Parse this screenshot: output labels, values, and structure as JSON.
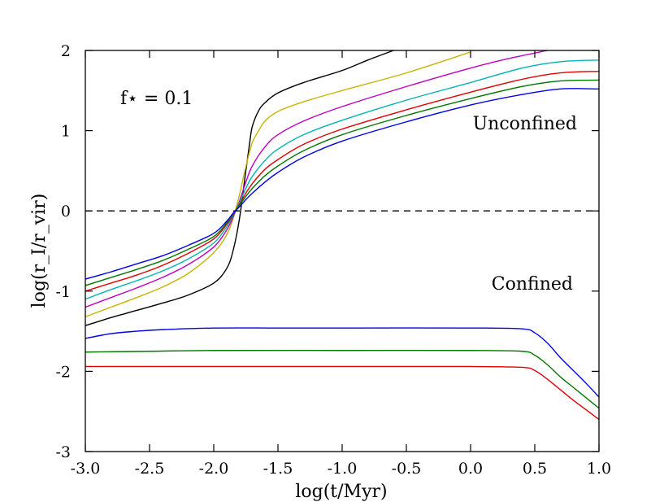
{
  "chart_data": {
    "type": "line",
    "title": "",
    "xlabel": "log(t/Myr)",
    "ylabel": "log(r_I/r_vir)",
    "xlim": [
      -3.0,
      1.0
    ],
    "ylim": [
      -3,
      2
    ],
    "xticks": [
      "-3.0",
      "-2.5",
      "-2.0",
      "-1.5",
      "-1.0",
      "-0.5",
      "0.0",
      "0.5",
      "1.0"
    ],
    "yticks": [
      "2",
      "1",
      "0",
      "-1",
      "-2",
      "-3"
    ],
    "annotations": {
      "param": "f⋆ = 0.1",
      "unconfined": "Unconfined",
      "confined": "Confined"
    },
    "reference_line": {
      "y": 0,
      "style": "dashed",
      "color": "#000000"
    },
    "series": [
      {
        "name": "unconfined-black",
        "color": "#000000",
        "x": [
          -3.0,
          -2.8,
          -2.6,
          -2.4,
          -2.2,
          -2.0,
          -1.9,
          -1.85,
          -1.8,
          -1.75,
          -1.72,
          -1.7,
          -1.65,
          -1.6,
          -1.5,
          -1.3,
          -1.0,
          -0.8,
          -0.6
        ],
        "y": [
          -1.43,
          -1.33,
          -1.24,
          -1.15,
          -1.05,
          -0.9,
          -0.72,
          -0.5,
          -0.1,
          0.5,
          0.85,
          1.05,
          1.25,
          1.35,
          1.47,
          1.6,
          1.75,
          1.88,
          2.0
        ]
      },
      {
        "name": "unconfined-yellow",
        "color": "#c8b400",
        "x": [
          -3.0,
          -2.8,
          -2.6,
          -2.4,
          -2.2,
          -2.0,
          -1.9,
          -1.85,
          -1.8,
          -1.75,
          -1.7,
          -1.65,
          -1.6,
          -1.5,
          -1.3,
          -1.0,
          -0.5,
          0.0
        ],
        "y": [
          -1.32,
          -1.2,
          -1.08,
          -0.95,
          -0.78,
          -0.52,
          -0.3,
          -0.1,
          0.2,
          0.55,
          0.85,
          1.0,
          1.12,
          1.24,
          1.36,
          1.5,
          1.72,
          1.98
        ]
      },
      {
        "name": "unconfined-magenta",
        "color": "#c000c0",
        "x": [
          -3.0,
          -2.8,
          -2.6,
          -2.4,
          -2.2,
          -2.0,
          -1.9,
          -1.85,
          -1.8,
          -1.75,
          -1.7,
          -1.6,
          -1.5,
          -1.3,
          -1.0,
          -0.5,
          0.0,
          0.3,
          0.6
        ],
        "y": [
          -1.2,
          -1.08,
          -0.96,
          -0.83,
          -0.67,
          -0.45,
          -0.24,
          -0.08,
          0.12,
          0.36,
          0.56,
          0.8,
          0.95,
          1.12,
          1.3,
          1.55,
          1.78,
          1.9,
          2.0
        ]
      },
      {
        "name": "unconfined-cyan",
        "color": "#00b4b4",
        "x": [
          -3.0,
          -2.8,
          -2.6,
          -2.4,
          -2.2,
          -2.0,
          -1.9,
          -1.85,
          -1.8,
          -1.75,
          -1.7,
          -1.6,
          -1.5,
          -1.3,
          -1.0,
          -0.5,
          0.0,
          0.4,
          0.7,
          1.0
        ],
        "y": [
          -1.1,
          -0.98,
          -0.87,
          -0.75,
          -0.6,
          -0.4,
          -0.2,
          -0.06,
          0.1,
          0.28,
          0.43,
          0.63,
          0.77,
          0.95,
          1.13,
          1.38,
          1.6,
          1.78,
          1.86,
          1.88
        ]
      },
      {
        "name": "unconfined-red",
        "color": "#e00000",
        "x": [
          -3.0,
          -2.8,
          -2.6,
          -2.4,
          -2.2,
          -2.0,
          -1.9,
          -1.85,
          -1.8,
          -1.75,
          -1.7,
          -1.6,
          -1.5,
          -1.3,
          -1.0,
          -0.5,
          0.0,
          0.4,
          0.7,
          1.0
        ],
        "y": [
          -1.0,
          -0.9,
          -0.8,
          -0.68,
          -0.53,
          -0.35,
          -0.17,
          -0.05,
          0.08,
          0.22,
          0.34,
          0.52,
          0.64,
          0.83,
          1.02,
          1.26,
          1.48,
          1.64,
          1.72,
          1.74
        ]
      },
      {
        "name": "unconfined-green",
        "color": "#007800",
        "x": [
          -3.0,
          -2.8,
          -2.6,
          -2.4,
          -2.2,
          -2.0,
          -1.9,
          -1.85,
          -1.8,
          -1.75,
          -1.7,
          -1.6,
          -1.5,
          -1.3,
          -1.0,
          -0.5,
          0.0,
          0.4,
          0.7,
          1.0
        ],
        "y": [
          -0.93,
          -0.83,
          -0.73,
          -0.62,
          -0.48,
          -0.32,
          -0.15,
          -0.04,
          0.07,
          0.18,
          0.28,
          0.44,
          0.56,
          0.75,
          0.95,
          1.19,
          1.4,
          1.55,
          1.62,
          1.63
        ]
      },
      {
        "name": "unconfined-blue",
        "color": "#0000e6",
        "x": [
          -3.0,
          -2.8,
          -2.6,
          -2.4,
          -2.2,
          -2.0,
          -1.9,
          -1.85,
          -1.8,
          -1.75,
          -1.7,
          -1.6,
          -1.5,
          -1.3,
          -1.0,
          -0.5,
          0.0,
          0.4,
          0.7,
          1.0
        ],
        "y": [
          -0.85,
          -0.76,
          -0.66,
          -0.56,
          -0.43,
          -0.28,
          -0.13,
          -0.03,
          0.05,
          0.14,
          0.22,
          0.36,
          0.48,
          0.67,
          0.87,
          1.11,
          1.32,
          1.45,
          1.52,
          1.52
        ]
      },
      {
        "name": "confined-blue",
        "color": "#0000e6",
        "x": [
          -3.0,
          -2.8,
          -2.6,
          -2.4,
          -2.0,
          -1.5,
          -1.0,
          0.0,
          0.4,
          0.5,
          0.6,
          0.7,
          0.8,
          0.9,
          1.0
        ],
        "y": [
          -1.59,
          -1.53,
          -1.5,
          -1.48,
          -1.46,
          -1.46,
          -1.46,
          -1.46,
          -1.47,
          -1.52,
          -1.65,
          -1.83,
          -1.99,
          -2.15,
          -2.32
        ]
      },
      {
        "name": "confined-green",
        "color": "#007800",
        "x": [
          -3.0,
          -2.5,
          -2.0,
          -1.0,
          0.0,
          0.4,
          0.5,
          0.6,
          0.7,
          0.8,
          0.9,
          1.0
        ],
        "y": [
          -1.76,
          -1.75,
          -1.74,
          -1.74,
          -1.74,
          -1.75,
          -1.8,
          -1.92,
          -2.07,
          -2.2,
          -2.33,
          -2.46
        ]
      },
      {
        "name": "confined-red",
        "color": "#e00000",
        "x": [
          -3.0,
          -2.5,
          -2.0,
          -1.0,
          0.0,
          0.4,
          0.5,
          0.6,
          0.7,
          0.8,
          0.9,
          1.0
        ],
        "y": [
          -1.94,
          -1.94,
          -1.94,
          -1.94,
          -1.94,
          -1.95,
          -1.99,
          -2.1,
          -2.23,
          -2.36,
          -2.48,
          -2.6
        ]
      }
    ]
  }
}
